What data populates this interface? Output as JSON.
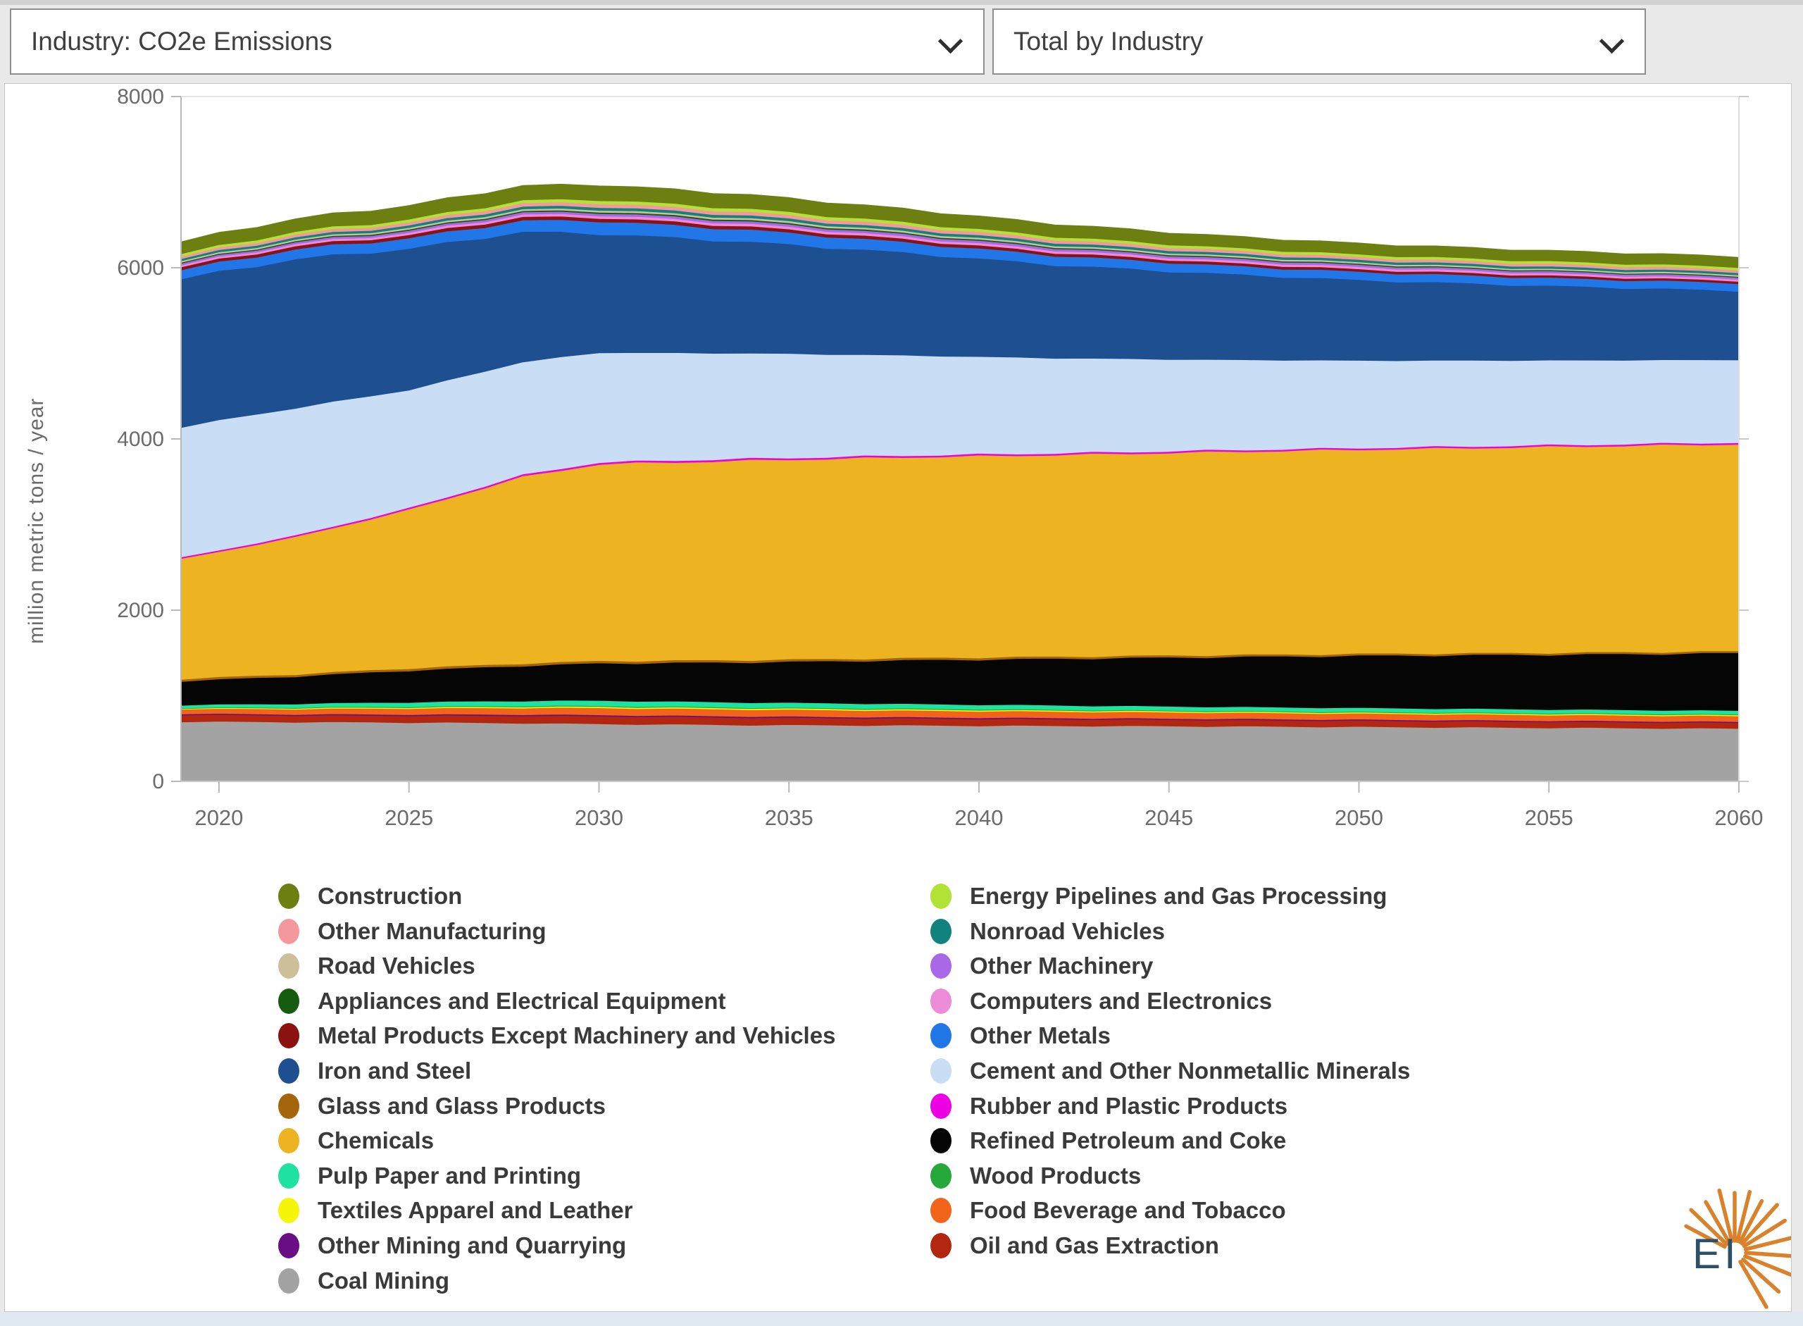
{
  "header": {
    "metric_select": {
      "value": "Industry: CO2e Emissions"
    },
    "view_select": {
      "value": "Total by Industry"
    }
  },
  "logo": {
    "text": "EI",
    "text_color": "#2d5067",
    "ray_color": "#d9822b"
  },
  "chart_data": {
    "type": "area",
    "stacked": true,
    "title": "",
    "xlabel": "",
    "ylabel": "million metric tons / year",
    "ylim": [
      0,
      8000
    ],
    "yticks": [
      0,
      2000,
      4000,
      6000,
      8000
    ],
    "xticks": [
      2020,
      2025,
      2030,
      2035,
      2040,
      2045,
      2050,
      2055,
      2060
    ],
    "x_range": [
      2019,
      2060
    ],
    "grid": "faint horizontal",
    "legend_position": "bottom two-column",
    "years": [
      2019,
      2022,
      2025,
      2028,
      2030,
      2034,
      2038,
      2042,
      2046,
      2050,
      2055,
      2060
    ],
    "series": [
      {
        "name": "Coal Mining",
        "color": "#a3a3a3",
        "values": [
          700,
          695,
          690,
          682,
          672,
          660,
          655,
          650,
          645,
          638,
          628,
          618
        ]
      },
      {
        "name": "Oil and Gas Extraction",
        "color": "#b3260f",
        "values": [
          80,
          78,
          80,
          86,
          90,
          86,
          82,
          78,
          75,
          72,
          70,
          68
        ]
      },
      {
        "name": "Other Mining and Quarrying",
        "color": "#6a0e85",
        "values": [
          12,
          13,
          14,
          15,
          15,
          15,
          14,
          14,
          13,
          13,
          12,
          12
        ]
      },
      {
        "name": "Food Beverage and Tobacco",
        "color": "#f26419",
        "values": [
          55,
          62,
          70,
          78,
          82,
          80,
          78,
          75,
          72,
          70,
          68,
          66
        ]
      },
      {
        "name": "Textiles Apparel and Leather",
        "color": "#f5f607",
        "values": [
          8,
          10,
          12,
          13,
          14,
          14,
          13,
          13,
          12,
          12,
          12,
          12
        ]
      },
      {
        "name": "Wood Products",
        "color": "#27a83c",
        "values": [
          7,
          8,
          9,
          10,
          10,
          10,
          10,
          9,
          9,
          9,
          9,
          9
        ]
      },
      {
        "name": "Pulp Paper and Printing",
        "color": "#1de2a2",
        "values": [
          32,
          42,
          52,
          58,
          62,
          58,
          54,
          50,
          47,
          45,
          43,
          42
        ]
      },
      {
        "name": "Refined Petroleum and Coke",
        "color": "#050505",
        "values": [
          280,
          320,
          370,
          410,
          435,
          470,
          510,
          545,
          580,
          610,
          640,
          672
        ]
      },
      {
        "name": "Glass and Glass Products",
        "color": "#a4650b",
        "values": [
          25,
          26,
          27,
          28,
          28,
          27,
          26,
          25,
          24,
          23,
          22,
          22
        ]
      },
      {
        "name": "Chemicals",
        "color": "#eeb320",
        "values": [
          1400,
          1600,
          1850,
          2180,
          2300,
          2330,
          2345,
          2355,
          2370,
          2385,
          2405,
          2420
        ]
      },
      {
        "name": "Rubber and Plastic Products",
        "color": "#ee00e4",
        "values": [
          18,
          19,
          20,
          21,
          22,
          22,
          21,
          21,
          20,
          20,
          20,
          20
        ]
      },
      {
        "name": "Cement and Other Nonmetallic Minerals",
        "color": "#c9ddf4",
        "values": [
          1525,
          1490,
          1380,
          1320,
          1280,
          1230,
          1170,
          1110,
          1060,
          1020,
          990,
          965
        ]
      },
      {
        "name": "Iron and Steel",
        "color": "#1d4f91",
        "values": [
          1730,
          1740,
          1650,
          1520,
          1390,
          1300,
          1200,
          1090,
          1010,
          940,
          870,
          807
        ]
      },
      {
        "name": "Other Metals",
        "color": "#2277e8",
        "values": [
          105,
          115,
          122,
          132,
          150,
          140,
          122,
          110,
          100,
          95,
          92,
          90
        ]
      },
      {
        "name": "Metal Products Except Machinery and Vehicles",
        "color": "#8c1111",
        "values": [
          35,
          37,
          38,
          40,
          40,
          38,
          36,
          34,
          32,
          30,
          28,
          27
        ]
      },
      {
        "name": "Computers and Electronics",
        "color": "#ec8cd8",
        "values": [
          22,
          24,
          26,
          28,
          30,
          30,
          29,
          28,
          27,
          26,
          25,
          24
        ]
      },
      {
        "name": "Other Machinery",
        "color": "#a868e8",
        "values": [
          20,
          22,
          24,
          26,
          28,
          28,
          27,
          26,
          25,
          24,
          23,
          22
        ]
      },
      {
        "name": "Appliances and Electrical Equipment",
        "color": "#155c10",
        "values": [
          12,
          13,
          14,
          15,
          16,
          16,
          15,
          14,
          13,
          13,
          12,
          12
        ]
      },
      {
        "name": "Road Vehicles",
        "color": "#ccbf9a",
        "values": [
          18,
          19,
          20,
          21,
          22,
          22,
          21,
          20,
          19,
          18,
          17,
          17
        ]
      },
      {
        "name": "Nonroad Vehicles",
        "color": "#12837c",
        "values": [
          25,
          27,
          29,
          31,
          33,
          32,
          31,
          30,
          29,
          28,
          27,
          26
        ]
      },
      {
        "name": "Other Manufacturing",
        "color": "#f5989d",
        "values": [
          30,
          33,
          36,
          39,
          42,
          41,
          39,
          37,
          35,
          34,
          33,
          32
        ]
      },
      {
        "name": "Energy Pipelines and Gas Processing",
        "color": "#b2e235",
        "values": [
          28,
          30,
          33,
          36,
          38,
          37,
          35,
          33,
          31,
          30,
          29,
          28
        ]
      },
      {
        "name": "Construction",
        "color": "#6c7f10",
        "values": [
          140,
          150,
          160,
          168,
          172,
          165,
          155,
          145,
          135,
          128,
          124,
          120
        ]
      }
    ],
    "legend": {
      "left": [
        "Construction",
        "Other Manufacturing",
        "Road Vehicles",
        "Appliances and Electrical Equipment",
        "Metal Products Except Machinery and Vehicles",
        "Iron and Steel",
        "Glass and Glass Products",
        "Chemicals",
        "Pulp Paper and Printing",
        "Textiles Apparel and Leather",
        "Other Mining and Quarrying",
        "Coal Mining"
      ],
      "right": [
        "Energy Pipelines and Gas Processing",
        "Nonroad Vehicles",
        "Other Machinery",
        "Computers and Electronics",
        "Other Metals",
        "Cement and Other Nonmetallic Minerals",
        "Rubber and Plastic Products",
        "Refined Petroleum and Coke",
        "Wood Products",
        "Food Beverage and Tobacco",
        "Oil and Gas Extraction"
      ]
    }
  }
}
